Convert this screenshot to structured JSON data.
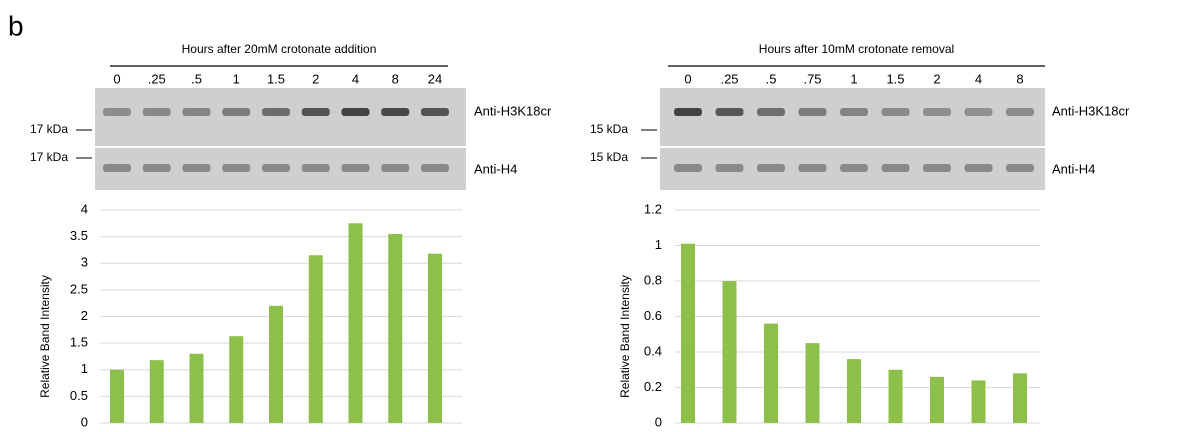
{
  "panel_label": "b",
  "chart_data": [
    {
      "type": "bar",
      "title": "Hours after 20mM crotonate addition",
      "categories": [
        "0",
        ".25",
        ".5",
        "1",
        "1.5",
        "2",
        "4",
        "8",
        "24"
      ],
      "values": [
        1.0,
        1.18,
        1.3,
        1.63,
        2.2,
        3.15,
        3.75,
        3.55,
        3.18
      ],
      "color": "#8cc04a",
      "ylabel": "Relative Band Intensity",
      "ylim": [
        0,
        4
      ],
      "yticks": [
        0,
        0.5,
        1,
        1.5,
        2,
        2.5,
        3,
        3.5,
        4
      ],
      "grid": true,
      "blots": [
        {
          "label": "Anti-H3K18cr",
          "marker": "17 kDa"
        },
        {
          "label": "Anti-H4",
          "marker": "17 kDa"
        }
      ]
    },
    {
      "type": "bar",
      "title": "Hours after 10mM crotonate removal",
      "categories": [
        "0",
        ".25",
        ".5",
        ".75",
        "1",
        "1.5",
        "2",
        "4",
        "8"
      ],
      "values": [
        1.01,
        0.8,
        0.56,
        0.45,
        0.36,
        0.3,
        0.26,
        0.24,
        0.28
      ],
      "color": "#8cc04a",
      "ylabel": "Relative Band Intensity",
      "ylim": [
        0,
        1.2
      ],
      "yticks": [
        0,
        0.2,
        0.4,
        0.6,
        0.8,
        1,
        1.2
      ],
      "grid": true,
      "blots": [
        {
          "label": "Anti-H3K18cr",
          "marker": "15 kDa"
        },
        {
          "label": "Anti-H4",
          "marker": "15 kDa"
        }
      ]
    }
  ]
}
